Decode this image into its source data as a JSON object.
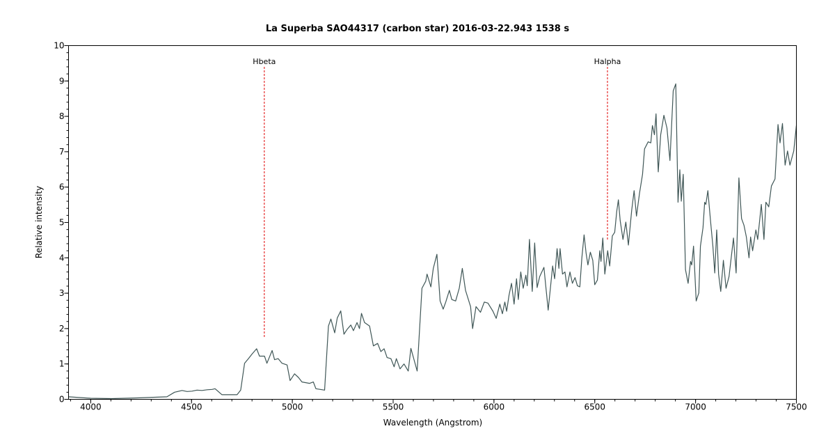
{
  "chart_data": {
    "type": "line",
    "title": "La Superba SAO44317  (carbon star)   2016-03-22.943   1538 s",
    "xlabel": "Wavelength (Angstrom)",
    "ylabel": "Relative intensity",
    "xlim": [
      3890,
      7500
    ],
    "ylim": [
      0,
      10
    ],
    "xticks": [
      4000,
      4500,
      5000,
      5500,
      6000,
      6500,
      7000,
      7500
    ],
    "xtick_labels": [
      "4000",
      "4500",
      "5000",
      "5500",
      "6000",
      "6500",
      "7000",
      "7500"
    ],
    "x_minor_step": 100,
    "yticks": [
      0,
      1,
      2,
      3,
      4,
      5,
      6,
      7,
      8,
      9,
      10
    ],
    "ytick_labels": [
      "0",
      "1",
      "2",
      "3",
      "4",
      "5",
      "6",
      "7",
      "8",
      "9",
      "10"
    ],
    "y_minor_step": 0.2,
    "grid": false,
    "line_color": "#3f5656",
    "marker_color": "#e00000",
    "markers": [
      {
        "label": "Hbeta",
        "wavelength": 4861,
        "from": 1.75,
        "to": 9.4
      },
      {
        "label": "Halpha",
        "wavelength": 6563,
        "from": 4.5,
        "to": 9.4
      }
    ],
    "series": [
      {
        "name": "spectrum",
        "points": [
          [
            3890,
            0.07
          ],
          [
            4000,
            0.03
          ],
          [
            4105,
            0.02
          ],
          [
            4230,
            0.04
          ],
          [
            4378,
            0.07
          ],
          [
            4416,
            0.2
          ],
          [
            4453,
            0.25
          ],
          [
            4478,
            0.22
          ],
          [
            4502,
            0.23
          ],
          [
            4527,
            0.26
          ],
          [
            4552,
            0.25
          ],
          [
            4577,
            0.27
          ],
          [
            4602,
            0.28
          ],
          [
            4617,
            0.3
          ],
          [
            4651,
            0.13
          ],
          [
            4726,
            0.13
          ],
          [
            4744,
            0.26
          ],
          [
            4763,
            1.02
          ],
          [
            4782,
            1.15
          ],
          [
            4800,
            1.28
          ],
          [
            4823,
            1.43
          ],
          [
            4837,
            1.22
          ],
          [
            4862,
            1.22
          ],
          [
            4874,
            1.02
          ],
          [
            4900,
            1.38
          ],
          [
            4912,
            1.12
          ],
          [
            4930,
            1.15
          ],
          [
            4949,
            1.02
          ],
          [
            4974,
            0.97
          ],
          [
            4989,
            0.53
          ],
          [
            5011,
            0.72
          ],
          [
            5030,
            0.62
          ],
          [
            5048,
            0.49
          ],
          [
            5086,
            0.45
          ],
          [
            5104,
            0.49
          ],
          [
            5117,
            0.3
          ],
          [
            5160,
            0.26
          ],
          [
            5179,
            2.07
          ],
          [
            5191,
            2.27
          ],
          [
            5210,
            1.88
          ],
          [
            5223,
            2.3
          ],
          [
            5240,
            2.5
          ],
          [
            5256,
            1.84
          ],
          [
            5271,
            1.97
          ],
          [
            5290,
            2.1
          ],
          [
            5303,
            1.94
          ],
          [
            5321,
            2.17
          ],
          [
            5333,
            2.0
          ],
          [
            5343,
            2.43
          ],
          [
            5358,
            2.17
          ],
          [
            5383,
            2.07
          ],
          [
            5402,
            1.51
          ],
          [
            5423,
            1.58
          ],
          [
            5439,
            1.35
          ],
          [
            5455,
            1.43
          ],
          [
            5470,
            1.18
          ],
          [
            5489,
            1.15
          ],
          [
            5505,
            0.92
          ],
          [
            5516,
            1.15
          ],
          [
            5534,
            0.86
          ],
          [
            5554,
            1.0
          ],
          [
            5575,
            0.8
          ],
          [
            5588,
            1.44
          ],
          [
            5619,
            0.8
          ],
          [
            5643,
            3.14
          ],
          [
            5662,
            3.34
          ],
          [
            5668,
            3.54
          ],
          [
            5687,
            3.18
          ],
          [
            5699,
            3.7
          ],
          [
            5717,
            4.1
          ],
          [
            5733,
            2.78
          ],
          [
            5748,
            2.55
          ],
          [
            5761,
            2.75
          ],
          [
            5779,
            3.08
          ],
          [
            5791,
            2.82
          ],
          [
            5810,
            2.78
          ],
          [
            5828,
            3.14
          ],
          [
            5843,
            3.7
          ],
          [
            5859,
            3.08
          ],
          [
            5884,
            2.62
          ],
          [
            5894,
            2.0
          ],
          [
            5911,
            2.62
          ],
          [
            5933,
            2.46
          ],
          [
            5952,
            2.75
          ],
          [
            5970,
            2.72
          ],
          [
            5995,
            2.49
          ],
          [
            6011,
            2.29
          ],
          [
            6029,
            2.69
          ],
          [
            6042,
            2.42
          ],
          [
            6054,
            2.75
          ],
          [
            6063,
            2.49
          ],
          [
            6075,
            2.95
          ],
          [
            6087,
            3.28
          ],
          [
            6100,
            2.69
          ],
          [
            6112,
            3.41
          ],
          [
            6121,
            2.82
          ],
          [
            6133,
            3.6
          ],
          [
            6145,
            3.14
          ],
          [
            6158,
            3.51
          ],
          [
            6165,
            3.21
          ],
          [
            6176,
            4.52
          ],
          [
            6190,
            3.05
          ],
          [
            6202,
            4.42
          ],
          [
            6214,
            3.16
          ],
          [
            6227,
            3.47
          ],
          [
            6248,
            3.73
          ],
          [
            6257,
            3.21
          ],
          [
            6269,
            2.52
          ],
          [
            6291,
            3.77
          ],
          [
            6301,
            3.41
          ],
          [
            6313,
            4.26
          ],
          [
            6322,
            3.7
          ],
          [
            6328,
            4.26
          ],
          [
            6340,
            3.54
          ],
          [
            6352,
            3.6
          ],
          [
            6362,
            3.18
          ],
          [
            6377,
            3.6
          ],
          [
            6389,
            3.28
          ],
          [
            6402,
            3.44
          ],
          [
            6414,
            3.21
          ],
          [
            6426,
            3.18
          ],
          [
            6436,
            4.0
          ],
          [
            6447,
            4.65
          ],
          [
            6457,
            4.13
          ],
          [
            6466,
            3.8
          ],
          [
            6478,
            4.16
          ],
          [
            6490,
            3.93
          ],
          [
            6500,
            3.24
          ],
          [
            6513,
            3.37
          ],
          [
            6525,
            4.2
          ],
          [
            6531,
            3.9
          ],
          [
            6540,
            4.56
          ],
          [
            6550,
            3.54
          ],
          [
            6564,
            4.2
          ],
          [
            6574,
            3.77
          ],
          [
            6587,
            4.62
          ],
          [
            6599,
            4.72
          ],
          [
            6609,
            5.31
          ],
          [
            6617,
            5.64
          ],
          [
            6626,
            5.05
          ],
          [
            6640,
            4.52
          ],
          [
            6654,
            5.01
          ],
          [
            6667,
            4.36
          ],
          [
            6683,
            5.34
          ],
          [
            6695,
            5.9
          ],
          [
            6707,
            5.18
          ],
          [
            6722,
            5.83
          ],
          [
            6737,
            6.36
          ],
          [
            6747,
            7.08
          ],
          [
            6765,
            7.28
          ],
          [
            6778,
            7.25
          ],
          [
            6786,
            7.74
          ],
          [
            6796,
            7.48
          ],
          [
            6804,
            8.07
          ],
          [
            6815,
            6.43
          ],
          [
            6827,
            7.48
          ],
          [
            6843,
            8.03
          ],
          [
            6858,
            7.67
          ],
          [
            6873,
            6.75
          ],
          [
            6889,
            8.72
          ],
          [
            6902,
            8.92
          ],
          [
            6913,
            5.57
          ],
          [
            6922,
            6.49
          ],
          [
            6929,
            5.6
          ],
          [
            6939,
            6.36
          ],
          [
            6950,
            3.67
          ],
          [
            6963,
            3.28
          ],
          [
            6975,
            3.9
          ],
          [
            6981,
            3.8
          ],
          [
            6990,
            4.33
          ],
          [
            7003,
            2.78
          ],
          [
            7016,
            3.01
          ],
          [
            7024,
            4.33
          ],
          [
            7037,
            4.85
          ],
          [
            7045,
            5.57
          ],
          [
            7051,
            5.51
          ],
          [
            7061,
            5.9
          ],
          [
            7074,
            5.05
          ],
          [
            7086,
            4.33
          ],
          [
            7095,
            3.57
          ],
          [
            7105,
            4.79
          ],
          [
            7114,
            3.54
          ],
          [
            7125,
            3.05
          ],
          [
            7138,
            3.93
          ],
          [
            7151,
            3.14
          ],
          [
            7166,
            3.47
          ],
          [
            7188,
            4.56
          ],
          [
            7201,
            3.57
          ],
          [
            7215,
            6.26
          ],
          [
            7228,
            5.11
          ],
          [
            7240,
            4.92
          ],
          [
            7252,
            4.59
          ],
          [
            7265,
            4.0
          ],
          [
            7273,
            4.59
          ],
          [
            7283,
            4.2
          ],
          [
            7299,
            4.79
          ],
          [
            7308,
            4.52
          ],
          [
            7326,
            5.51
          ],
          [
            7339,
            4.52
          ],
          [
            7349,
            5.57
          ],
          [
            7363,
            5.44
          ],
          [
            7376,
            6.03
          ],
          [
            7394,
            6.23
          ],
          [
            7409,
            7.77
          ],
          [
            7419,
            7.25
          ],
          [
            7431,
            7.8
          ],
          [
            7444,
            6.62
          ],
          [
            7456,
            7.02
          ],
          [
            7468,
            6.62
          ],
          [
            7487,
            7.02
          ],
          [
            7500,
            7.74
          ]
        ]
      }
    ]
  }
}
